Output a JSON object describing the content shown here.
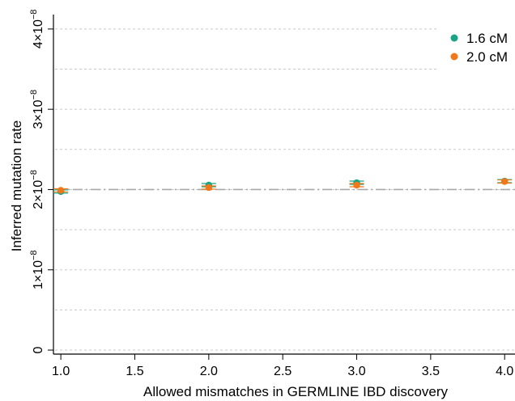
{
  "chart_data": {
    "type": "scatter",
    "xlabel": "Allowed mismatches in GERMLINE IBD discovery",
    "ylabel": "Inferred mutation rate",
    "xlim": [
      0.95,
      4.07
    ],
    "ylim": [
      -5e-10,
      4.18e-08
    ],
    "x_ticks": [
      1.0,
      1.5,
      2.0,
      2.5,
      3.0,
      3.5,
      4.0
    ],
    "x_tick_labels": [
      "1.0",
      "1.5",
      "2.0",
      "2.5",
      "3.0",
      "3.5",
      "4.0"
    ],
    "y_ticks": [
      0,
      1e-08,
      2e-08,
      3e-08,
      4e-08
    ],
    "y_tick_mantissa": [
      "0",
      "1×10",
      "2×10",
      "3×10",
      "4×10"
    ],
    "y_tick_exponent": [
      "",
      "−8",
      "−8",
      "−8",
      "−8"
    ],
    "gridlines_y": [
      0,
      5e-09,
      1e-08,
      1.5e-08,
      2e-08,
      2.5e-08,
      3e-08,
      3.5e-08,
      4e-08
    ],
    "reference_line_y": 2e-08,
    "grid": true,
    "legend_position": "top-right",
    "series": [
      {
        "name": "1.6 cM",
        "color": "#1aa384",
        "x": [
          1.0,
          2.0,
          3.0,
          4.0
        ],
        "y": [
          1.975e-08,
          2.055e-08,
          2.085e-08,
          2.105e-08
        ],
        "err": [
          2e-10,
          2e-10,
          2e-10,
          2e-10
        ]
      },
      {
        "name": "2.0 cM",
        "color": "#f07818",
        "x": [
          1.0,
          2.0,
          3.0,
          4.0
        ],
        "y": [
          1.99e-08,
          2.025e-08,
          2.055e-08,
          2.1e-08
        ],
        "err": [
          2e-10,
          2e-10,
          2e-10,
          2e-10
        ]
      }
    ]
  }
}
